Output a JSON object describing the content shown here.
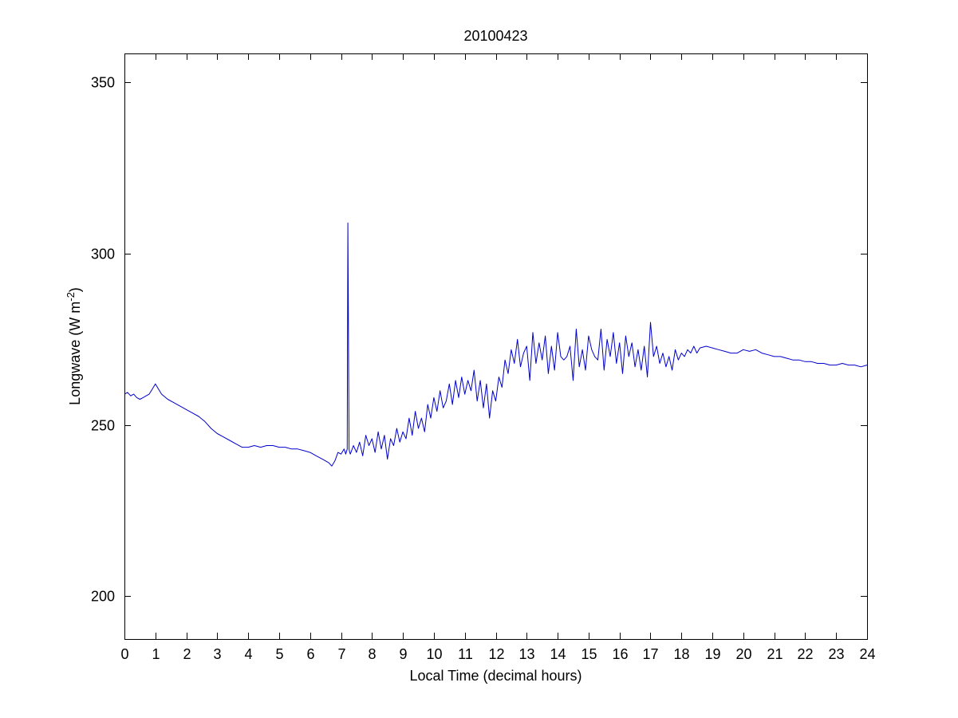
{
  "chart_data": {
    "type": "line",
    "title": "20100423",
    "xlabel": "Local Time (decimal hours)",
    "ylabel_main": "Longwave (W m",
    "ylabel_sup": "-2",
    "ylabel_close": ")",
    "xlim": [
      0,
      24
    ],
    "ylim": [
      187.5,
      358.5
    ],
    "xticks": [
      0,
      1,
      2,
      3,
      4,
      5,
      6,
      7,
      8,
      9,
      10,
      11,
      12,
      13,
      14,
      15,
      16,
      17,
      18,
      19,
      20,
      21,
      22,
      23,
      24
    ],
    "yticks": [
      200,
      250,
      300,
      350
    ],
    "grid": false,
    "line_color": "#0000cc",
    "series": [
      {
        "x": [
          0,
          0.1,
          0.2,
          0.3,
          0.4,
          0.5,
          0.6,
          0.7,
          0.8,
          0.9,
          1.0,
          1.1,
          1.2,
          1.4,
          1.6,
          1.8,
          2.0,
          2.2,
          2.4,
          2.6,
          2.8,
          3.0,
          3.2,
          3.4,
          3.6,
          3.8,
          4.0,
          4.2,
          4.4,
          4.6,
          4.8,
          5.0,
          5.2,
          5.4,
          5.6,
          5.8,
          6.0,
          6.2,
          6.4,
          6.6,
          6.7,
          6.8,
          6.9,
          7.0,
          7.1,
          7.15,
          7.2,
          7.22,
          7.24,
          7.26,
          7.28,
          7.3,
          7.4,
          7.5,
          7.6,
          7.7,
          7.8,
          7.9,
          8.0,
          8.1,
          8.2,
          8.3,
          8.4,
          8.5,
          8.6,
          8.7,
          8.8,
          8.9,
          9.0,
          9.1,
          9.2,
          9.3,
          9.4,
          9.5,
          9.6,
          9.7,
          9.8,
          9.9,
          10.0,
          10.1,
          10.2,
          10.3,
          10.4,
          10.5,
          10.6,
          10.7,
          10.8,
          10.9,
          11.0,
          11.1,
          11.2,
          11.3,
          11.4,
          11.5,
          11.6,
          11.7,
          11.8,
          11.9,
          12.0,
          12.1,
          12.2,
          12.3,
          12.4,
          12.5,
          12.6,
          12.7,
          12.8,
          12.9,
          13.0,
          13.1,
          13.2,
          13.3,
          13.4,
          13.5,
          13.6,
          13.7,
          13.8,
          13.9,
          14.0,
          14.1,
          14.2,
          14.3,
          14.4,
          14.5,
          14.6,
          14.7,
          14.8,
          14.9,
          15.0,
          15.1,
          15.2,
          15.3,
          15.4,
          15.5,
          15.6,
          15.7,
          15.8,
          15.9,
          16.0,
          16.1,
          16.2,
          16.3,
          16.4,
          16.5,
          16.6,
          16.7,
          16.8,
          16.9,
          17.0,
          17.1,
          17.2,
          17.3,
          17.4,
          17.5,
          17.6,
          17.7,
          17.8,
          17.9,
          18.0,
          18.1,
          18.2,
          18.3,
          18.4,
          18.5,
          18.6,
          18.8,
          19.0,
          19.2,
          19.4,
          19.6,
          19.8,
          20.0,
          20.2,
          20.4,
          20.6,
          20.8,
          21.0,
          21.2,
          21.4,
          21.6,
          21.8,
          22.0,
          22.2,
          22.4,
          22.6,
          22.8,
          23.0,
          23.2,
          23.4,
          23.6,
          23.8,
          24.0
        ],
        "y": [
          259,
          259.5,
          258.5,
          259,
          258,
          257.5,
          258,
          258.5,
          259,
          260.5,
          262,
          260.5,
          259,
          257.5,
          256.5,
          255.5,
          254.5,
          253.5,
          252.5,
          251,
          249,
          247.5,
          246.5,
          245.5,
          244.5,
          243.5,
          243.5,
          244,
          243.5,
          244,
          244,
          243.5,
          243.5,
          243,
          243,
          242.5,
          242,
          241,
          240,
          239,
          238,
          239.5,
          242,
          241.5,
          243,
          241.5,
          243,
          309,
          275,
          243,
          242,
          241.5,
          244,
          242,
          245,
          241,
          247,
          244,
          246,
          242,
          248,
          243,
          247,
          240,
          246,
          244,
          249,
          245,
          248,
          246,
          252,
          247,
          254,
          249,
          252,
          248,
          256,
          252,
          258,
          254,
          260,
          255,
          257,
          262,
          256,
          263,
          258,
          264,
          259,
          263,
          260,
          266,
          257,
          263,
          255,
          262,
          252,
          260,
          257,
          264,
          261,
          269,
          265,
          272,
          268,
          275,
          267,
          271,
          273,
          263,
          277,
          268,
          274,
          269,
          276,
          265,
          273,
          266,
          277,
          270,
          269,
          270,
          273,
          263,
          278,
          267,
          272,
          266,
          276,
          272,
          270,
          269,
          278,
          266,
          275,
          270,
          277,
          268,
          274,
          265,
          276,
          270,
          274,
          267,
          272,
          266,
          273,
          264,
          280,
          270,
          273,
          268,
          271,
          267,
          270,
          266,
          272,
          269,
          271,
          270,
          272,
          271,
          273,
          271,
          272.5,
          273,
          272.5,
          272,
          271.5,
          271,
          271,
          272,
          271.5,
          272,
          271,
          270.5,
          270,
          270,
          269.5,
          269,
          269,
          268.5,
          268.5,
          268,
          268,
          267.5,
          267.5,
          268,
          267.5,
          267.5,
          267,
          267.5
        ]
      }
    ]
  }
}
